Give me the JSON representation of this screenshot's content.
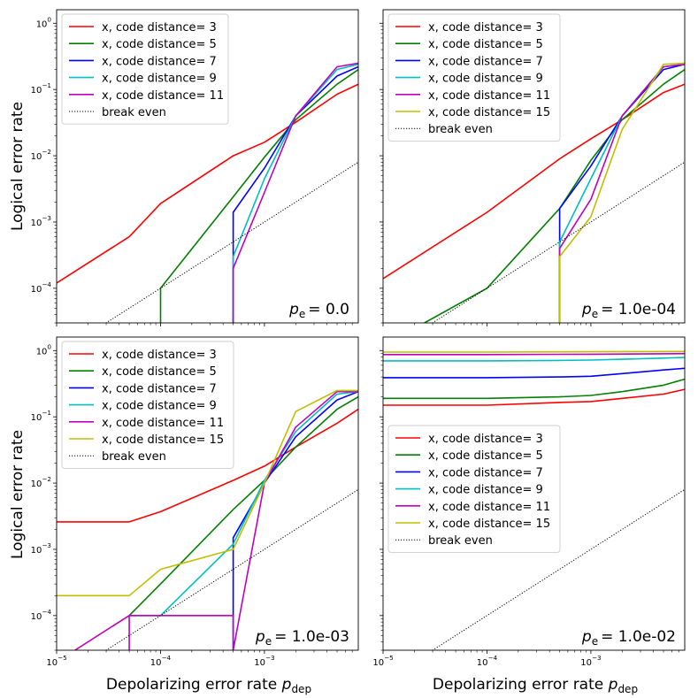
{
  "figure": {
    "ylabel": "Logical error rate",
    "xlabel_prefix": "Depolarizing error rate ",
    "xlabel_symbol": "p",
    "xlabel_sub": "dep",
    "pe_symbol": "p",
    "pe_sub": "e",
    "pe_eq": "= "
  },
  "chart_data": [
    {
      "type": "line",
      "scale": "loglog",
      "xlim": [
        1e-05,
        0.008
      ],
      "ylim": [
        3e-05,
        1.6
      ],
      "xticks": [
        1e-05,
        0.0001,
        0.001
      ],
      "xtick_labels": [
        "10^-5",
        "10^-4",
        "10^-3"
      ],
      "yticks": [
        0.0001,
        0.001,
        0.01,
        0.1,
        1
      ],
      "ytick_labels": [
        "10^-4",
        "10^-3",
        "10^-2",
        "10^-1",
        "10^0"
      ],
      "show_x_ticklabels": false,
      "show_y_ticklabels": true,
      "annotation": "0.0",
      "legend_position": "top-left",
      "series": [
        {
          "name": "x, code distance= 3",
          "color": "#ff0000",
          "x": [
            1e-05,
            5e-05,
            0.0001,
            0.0005,
            0.001,
            0.002,
            0.005,
            0.008
          ],
          "y": [
            0.00012,
            0.0006,
            0.0019,
            0.01,
            0.016,
            0.032,
            0.085,
            0.12
          ]
        },
        {
          "name": "x, code distance= 5",
          "color": "#008000",
          "x": [
            0.0001,
            0.0001,
            0.0005,
            0.001,
            0.002,
            0.005,
            0.008
          ],
          "y": [
            3e-05,
            0.0001,
            0.0024,
            0.0095,
            0.035,
            0.12,
            0.2
          ]
        },
        {
          "name": "x, code distance= 7",
          "color": "#0000ff",
          "x": [
            0.0005,
            0.0005,
            0.001,
            0.002,
            0.005,
            0.008
          ],
          "y": [
            3e-05,
            0.0014,
            0.0065,
            0.04,
            0.16,
            0.22
          ]
        },
        {
          "name": "x, code distance= 9",
          "color": "#00bfbf",
          "x": [
            0.0005,
            0.0005,
            0.001,
            0.002,
            0.005,
            0.008
          ],
          "y": [
            3e-05,
            0.0003,
            0.0045,
            0.04,
            0.2,
            0.24
          ]
        },
        {
          "name": "x, code distance= 11",
          "color": "#bf00bf",
          "x": [
            0.0005,
            0.0005,
            0.001,
            0.002,
            0.005,
            0.008
          ],
          "y": [
            3e-05,
            0.0002,
            0.0028,
            0.04,
            0.22,
            0.25
          ]
        },
        {
          "name": "break even",
          "color": "#000000",
          "dashed": true,
          "x": [
            1e-05,
            0.008
          ],
          "y": [
            1e-05,
            0.008
          ]
        }
      ]
    },
    {
      "type": "line",
      "scale": "loglog",
      "xlim": [
        1e-05,
        0.008
      ],
      "ylim": [
        3e-05,
        1.6
      ],
      "xticks": [
        1e-05,
        0.0001,
        0.001
      ],
      "xtick_labels": [
        "10^-5",
        "10^-4",
        "10^-3"
      ],
      "yticks": [
        0.0001,
        0.001,
        0.01,
        0.1,
        1
      ],
      "ytick_labels": [
        "10^-4",
        "10^-3",
        "10^-2",
        "10^-1",
        "10^0"
      ],
      "show_x_ticklabels": false,
      "show_y_ticklabels": false,
      "annotation": "1.0e-04",
      "legend_position": "top-left",
      "series": [
        {
          "name": "x, code distance= 3",
          "color": "#ff0000",
          "x": [
            1e-05,
            0.0001,
            0.0005,
            0.001,
            0.002,
            0.005,
            0.008
          ],
          "y": [
            0.00014,
            0.0014,
            0.009,
            0.018,
            0.035,
            0.09,
            0.12
          ]
        },
        {
          "name": "x, code distance= 5",
          "color": "#008000",
          "x": [
            2.5e-05,
            0.0001,
            0.0005,
            0.001,
            0.002,
            0.005,
            0.008
          ],
          "y": [
            3e-05,
            0.0001,
            0.0016,
            0.0085,
            0.035,
            0.12,
            0.2
          ]
        },
        {
          "name": "x, code distance= 7",
          "color": "#0000ff",
          "x": [
            0.0005,
            0.0005,
            0.001,
            0.002,
            0.005,
            0.008
          ],
          "y": [
            3e-05,
            0.0016,
            0.007,
            0.04,
            0.2,
            0.24
          ]
        },
        {
          "name": "x, code distance= 9",
          "color": "#00bfbf",
          "x": [
            0.0005,
            0.0005,
            0.001,
            0.002,
            0.005,
            0.008
          ],
          "y": [
            3e-05,
            0.0005,
            0.0045,
            0.04,
            0.22,
            0.24
          ]
        },
        {
          "name": "x, code distance= 11",
          "color": "#bf00bf",
          "x": [
            0.0005,
            0.0005,
            0.001,
            0.002,
            0.005,
            0.008
          ],
          "y": [
            3e-05,
            0.0004,
            0.0022,
            0.04,
            0.22,
            0.24
          ]
        },
        {
          "name": "x, code distance= 15",
          "color": "#bfbf00",
          "x": [
            0.0005,
            0.0005,
            0.001,
            0.002,
            0.005,
            0.008
          ],
          "y": [
            3e-05,
            0.0003,
            0.0012,
            0.025,
            0.24,
            0.25
          ]
        },
        {
          "name": "break even",
          "color": "#000000",
          "dashed": true,
          "x": [
            1e-05,
            0.008
          ],
          "y": [
            1e-05,
            0.008
          ]
        }
      ]
    },
    {
      "type": "line",
      "scale": "loglog",
      "xlim": [
        1e-05,
        0.008
      ],
      "ylim": [
        3e-05,
        1.6
      ],
      "xticks": [
        1e-05,
        0.0001,
        0.001
      ],
      "xtick_labels": [
        "10^-5",
        "10^-4",
        "10^-3"
      ],
      "yticks": [
        0.0001,
        0.001,
        0.01,
        0.1,
        1
      ],
      "ytick_labels": [
        "10^-4",
        "10^-3",
        "10^-2",
        "10^-1",
        "10^0"
      ],
      "show_x_ticklabels": true,
      "show_y_ticklabels": true,
      "annotation": "1.0e-03",
      "legend_position": "top-left",
      "series": [
        {
          "name": "x, code distance= 3",
          "color": "#ff0000",
          "x": [
            1e-05,
            5e-05,
            0.0001,
            0.0005,
            0.001,
            0.002,
            0.005,
            0.008
          ],
          "y": [
            0.0026,
            0.0026,
            0.0037,
            0.011,
            0.018,
            0.035,
            0.08,
            0.13
          ]
        },
        {
          "name": "x, code distance= 5",
          "color": "#008000",
          "x": [
            5e-05,
            0.0001,
            0.0005,
            0.001,
            0.002,
            0.005,
            0.008
          ],
          "y": [
            0.0001,
            0.0003,
            0.004,
            0.011,
            0.035,
            0.13,
            0.2
          ]
        },
        {
          "name": "x, code distance= 7",
          "color": "#0000ff",
          "x": [
            0.0005,
            0.0005,
            0.001,
            0.002,
            0.005,
            0.008
          ],
          "y": [
            3e-05,
            0.0015,
            0.01,
            0.05,
            0.18,
            0.24
          ]
        },
        {
          "name": "x, code distance= 9",
          "color": "#00bfbf",
          "x": [
            5e-05,
            0.0001,
            0.0005,
            0.001,
            0.002,
            0.005,
            0.008
          ],
          "y": [
            0.0001,
            0.0001,
            0.0012,
            0.011,
            0.06,
            0.22,
            0.24
          ]
        },
        {
          "name": "x, code distance= 11",
          "color": "#bf00bf",
          "x": [
            1.5e-05,
            5e-05,
            5e-05,
            5e-05,
            0.0005,
            0.0005,
            0.001,
            0.002,
            0.005,
            0.008
          ],
          "y": [
            3e-05,
            0.0001,
            3e-05,
            0.0001,
            0.0001,
            3e-05,
            0.01,
            0.07,
            0.24,
            0.24
          ]
        },
        {
          "name": "x, code distance= 15",
          "color": "#bfbf00",
          "x": [
            1e-05,
            5e-05,
            0.0001,
            0.0005,
            0.001,
            0.002,
            0.005,
            0.008
          ],
          "y": [
            0.0002,
            0.0002,
            0.0005,
            0.001,
            0.01,
            0.12,
            0.25,
            0.25
          ]
        },
        {
          "name": "break even",
          "color": "#000000",
          "dashed": true,
          "x": [
            1e-05,
            0.008
          ],
          "y": [
            1e-05,
            0.008
          ]
        }
      ]
    },
    {
      "type": "line",
      "scale": "loglog",
      "xlim": [
        1e-05,
        0.008
      ],
      "ylim": [
        3e-05,
        1.6
      ],
      "xticks": [
        1e-05,
        0.0001,
        0.001
      ],
      "xtick_labels": [
        "10^-5",
        "10^-4",
        "10^-3"
      ],
      "yticks": [
        0.0001,
        0.001,
        0.01,
        0.1,
        1
      ],
      "ytick_labels": [
        "10^-4",
        "10^-3",
        "10^-2",
        "10^-1",
        "10^0"
      ],
      "show_x_ticklabels": true,
      "show_y_ticklabels": false,
      "annotation": "1.0e-02",
      "legend_position": "center-left",
      "series": [
        {
          "name": "x, code distance= 3",
          "color": "#ff0000",
          "x": [
            1e-05,
            0.0001,
            0.0005,
            0.001,
            0.002,
            0.005,
            0.008
          ],
          "y": [
            0.15,
            0.15,
            0.165,
            0.17,
            0.19,
            0.22,
            0.26
          ]
        },
        {
          "name": "x, code distance= 5",
          "color": "#008000",
          "x": [
            1e-05,
            0.0001,
            0.0005,
            0.001,
            0.002,
            0.005,
            0.008
          ],
          "y": [
            0.19,
            0.19,
            0.2,
            0.21,
            0.24,
            0.3,
            0.37
          ]
        },
        {
          "name": "x, code distance= 7",
          "color": "#0000ff",
          "x": [
            1e-05,
            0.0001,
            0.0005,
            0.001,
            0.002,
            0.005,
            0.008
          ],
          "y": [
            0.39,
            0.39,
            0.4,
            0.41,
            0.45,
            0.51,
            0.54
          ]
        },
        {
          "name": "x, code distance= 9",
          "color": "#00bfbf",
          "x": [
            1e-05,
            0.0001,
            0.0005,
            0.001,
            0.002,
            0.005,
            0.008
          ],
          "y": [
            0.7,
            0.7,
            0.71,
            0.72,
            0.74,
            0.77,
            0.79
          ]
        },
        {
          "name": "x, code distance= 11",
          "color": "#bf00bf",
          "x": [
            1e-05,
            0.0001,
            0.001,
            0.008
          ],
          "y": [
            0.87,
            0.87,
            0.88,
            0.9
          ]
        },
        {
          "name": "x, code distance= 15",
          "color": "#bfbf00",
          "x": [
            1e-05,
            0.0001,
            0.001,
            0.008
          ],
          "y": [
            0.95,
            0.95,
            0.96,
            0.97
          ]
        },
        {
          "name": "break even",
          "color": "#000000",
          "dashed": true,
          "x": [
            1e-05,
            0.008
          ],
          "y": [
            1e-05,
            0.008
          ]
        }
      ]
    }
  ]
}
